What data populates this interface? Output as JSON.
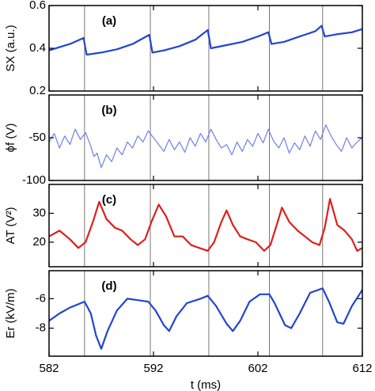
{
  "chart_data": [
    {
      "type": "line",
      "annotation": "(a)",
      "ylabel": "SX (a.u.)",
      "xlim": [
        582,
        612
      ],
      "xticks": [
        582,
        592,
        602,
        612
      ],
      "ylim": [
        0.2,
        0.6
      ],
      "yticks": [
        0.6,
        0.4,
        0.2
      ],
      "vlines": [
        585.4,
        591.7,
        597.3,
        603.1,
        608.2
      ],
      "series": [
        {
          "color": "#2244d4",
          "x": [
            582,
            583,
            584,
            585.3,
            585.6,
            587,
            588.5,
            590,
            591.6,
            591.9,
            593,
            594.5,
            596,
            597.2,
            597.5,
            599,
            600.5,
            602,
            603.0,
            603.3,
            604.5,
            606,
            607.5,
            608.1,
            608.4,
            609.5,
            611,
            612
          ],
          "values": [
            0.39,
            0.405,
            0.42,
            0.448,
            0.37,
            0.38,
            0.395,
            0.42,
            0.463,
            0.38,
            0.39,
            0.41,
            0.44,
            0.485,
            0.4,
            0.415,
            0.43,
            0.455,
            0.475,
            0.42,
            0.43,
            0.455,
            0.48,
            0.505,
            0.455,
            0.465,
            0.475,
            0.49
          ]
        }
      ]
    },
    {
      "type": "line",
      "annotation": "(b)",
      "ylabel": "ϕf (V)",
      "xlim": [
        582,
        612
      ],
      "xticks": [
        582,
        592,
        602,
        612
      ],
      "ylim": [
        -100,
        0
      ],
      "yticks": [
        -50,
        -100
      ],
      "vlines": [
        585.4,
        591.7,
        597.3,
        603.1,
        608.2
      ],
      "series": [
        {
          "color": "#7080e8",
          "x": [
            582,
            582.5,
            583,
            583.5,
            584,
            584.5,
            585,
            585.5,
            586,
            586.3,
            586.6,
            587,
            587.5,
            588,
            588.5,
            589,
            589.5,
            590,
            590.5,
            591,
            591.5,
            592,
            592.5,
            593,
            593.5,
            594,
            594.5,
            595,
            595.5,
            596,
            596.5,
            597,
            597.5,
            598,
            598.5,
            599,
            599.5,
            600,
            600.5,
            601,
            601.5,
            602,
            602.5,
            603,
            603.5,
            604,
            604.5,
            605,
            605.5,
            606,
            606.5,
            607,
            607.5,
            608,
            608.5,
            609,
            609.5,
            610,
            610.5,
            611,
            611.5,
            612
          ],
          "values": [
            -55,
            -45,
            -62,
            -48,
            -58,
            -40,
            -52,
            -44,
            -60,
            -72,
            -68,
            -85,
            -70,
            -78,
            -62,
            -70,
            -55,
            -62,
            -48,
            -55,
            -42,
            -50,
            -58,
            -66,
            -52,
            -64,
            -55,
            -67,
            -50,
            -60,
            -45,
            -55,
            -40,
            -52,
            -62,
            -58,
            -70,
            -55,
            -66,
            -52,
            -60,
            -45,
            -56,
            -40,
            -54,
            -62,
            -50,
            -68,
            -56,
            -64,
            -48,
            -60,
            -42,
            -52,
            -35,
            -48,
            -58,
            -66,
            -50,
            -62,
            -55,
            -50
          ]
        }
      ]
    },
    {
      "type": "line",
      "annotation": "(c)",
      "ylabel": "AT (V²)",
      "xlim": [
        582,
        612
      ],
      "xticks": [
        582,
        592,
        602,
        612
      ],
      "ylim": [
        11.5,
        40
      ],
      "yticks": [
        30,
        20
      ],
      "vlines": [
        585.4,
        591.7,
        597.3,
        603.1,
        608.2
      ],
      "series": [
        {
          "color": "#dd1f1f",
          "x": [
            582,
            583,
            584,
            584.8,
            585.5,
            586.2,
            586.8,
            587.5,
            588.3,
            589,
            589.8,
            590.5,
            591.2,
            591.8,
            592.5,
            593.2,
            594,
            594.8,
            595.6,
            596.4,
            597.2,
            597.8,
            598.5,
            599,
            599.6,
            600.3,
            601,
            601.8,
            602.6,
            603.2,
            603.8,
            604.3,
            605,
            605.8,
            606.5,
            607.2,
            607.9,
            608.4,
            608.9,
            609.6,
            610.3,
            611,
            611.5,
            612
          ],
          "values": [
            22,
            24,
            21,
            18,
            20,
            27,
            34,
            28,
            25,
            24,
            21,
            19,
            21,
            27,
            33,
            29,
            22,
            22,
            19,
            18,
            17,
            20,
            27,
            31,
            26,
            22,
            21,
            20,
            17,
            19,
            26,
            32,
            27,
            24,
            22,
            20,
            19,
            25,
            35,
            26,
            24,
            21,
            17,
            18
          ]
        }
      ]
    },
    {
      "type": "line",
      "annotation": "(d)",
      "ylabel": "Er (kV/m)",
      "xlabel": "t (ms)",
      "xlim": [
        582,
        612
      ],
      "xticks": [
        582,
        592,
        602,
        612
      ],
      "ylim": [
        -9.9,
        -4.1
      ],
      "yticks": [
        -6,
        -8
      ],
      "vlines": [
        585.4,
        591.7,
        597.3,
        603.1,
        608.2
      ],
      "series": [
        {
          "color": "#2244d4",
          "x": [
            582,
            583,
            584,
            585.4,
            586,
            586.5,
            587,
            587.6,
            588.5,
            589.5,
            590.5,
            591.5,
            592.2,
            593,
            593.5,
            594.2,
            595.2,
            596.5,
            597.2,
            598,
            599,
            599.6,
            600.3,
            601.2,
            602.2,
            603.1,
            603.6,
            604.6,
            605.2,
            606,
            607,
            608.2,
            608.8,
            609.6,
            610.2,
            611,
            612
          ],
          "values": [
            -7.5,
            -7.0,
            -6.6,
            -6.2,
            -7,
            -8.5,
            -9.4,
            -8.2,
            -6.8,
            -6.0,
            -6.1,
            -6.2,
            -6.8,
            -7.8,
            -8.2,
            -7.2,
            -6.3,
            -6.0,
            -5.8,
            -6.5,
            -7.7,
            -8.2,
            -7.5,
            -6.2,
            -5.7,
            -5.7,
            -6.3,
            -7.8,
            -8.0,
            -7.0,
            -5.6,
            -5.3,
            -6.2,
            -7.6,
            -7.7,
            -6.5,
            -5.4
          ]
        }
      ]
    }
  ]
}
